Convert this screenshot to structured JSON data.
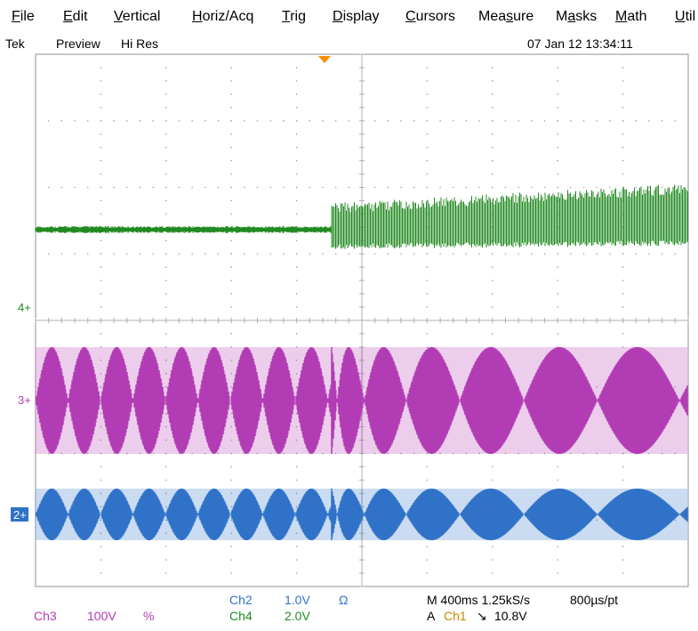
{
  "menu": {
    "items": [
      {
        "label": "File",
        "accel": "F",
        "rest": "ile"
      },
      {
        "label": "Edit",
        "accel": "E",
        "rest": "dit"
      },
      {
        "label": "Vertical",
        "accel": "V",
        "rest": "ertical"
      },
      {
        "label": "Horiz/Acq",
        "accel": "H",
        "rest": "oriz/Acq"
      },
      {
        "label": "Trig",
        "accel": "T",
        "rest": "rig"
      },
      {
        "label": "Display",
        "accel": "D",
        "rest": "isplay"
      },
      {
        "label": "Cursors",
        "accel": "C",
        "rest": "ursors"
      },
      {
        "label": "Measure",
        "pre": "Mea",
        "accel": "s",
        "rest": "ure"
      },
      {
        "label": "Masks",
        "pre": "M",
        "accel": "a",
        "rest": "sks"
      },
      {
        "label": "Math",
        "accel": "M",
        "rest": "ath"
      },
      {
        "label": "Util",
        "accel": "U",
        "rest": "til"
      }
    ]
  },
  "status": {
    "brand": "Tek",
    "mode": "Preview",
    "acq_mode": "Hi Res",
    "datetime": "07 Jan 12 13:34:11"
  },
  "channels": {
    "ch4_marker": "4",
    "ch3_marker": "3",
    "ch2_marker": "2",
    "ch4_color": "#218a21",
    "ch3_color": "#b23cb4",
    "ch2_color": "#2f72c8",
    "trigger_color": "#ff8c00"
  },
  "readout": {
    "ch2_label": "Ch2",
    "ch2_scale": "1.0V",
    "ch2_unit": "Ω",
    "ch4_label": "Ch4",
    "ch4_scale": "2.0V",
    "ch3_label": "Ch3",
    "ch3_scale": "100V",
    "ch3_unit": "%",
    "timebase": "M 400ms 1.25kS/s",
    "resolution": "800µs/pt",
    "trigger_prefix": "A",
    "trigger_source": "Ch1",
    "trigger_slope": "↘",
    "trigger_level": "10.8V"
  }
}
